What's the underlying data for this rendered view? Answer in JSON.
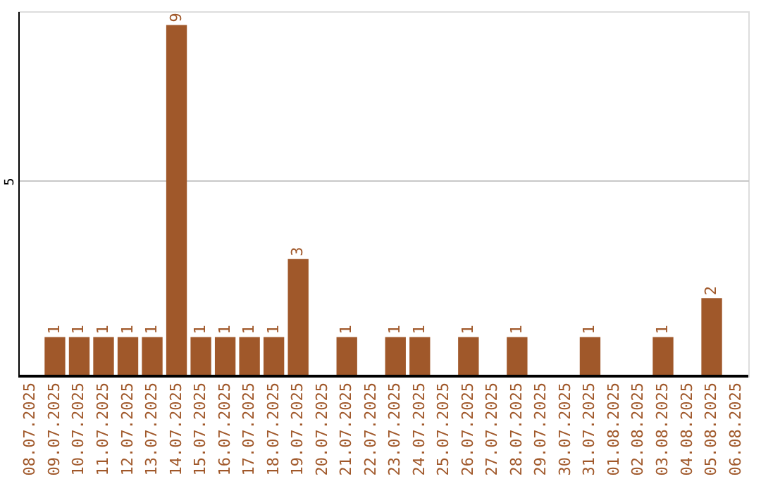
{
  "chart_data": {
    "type": "bar",
    "categories": [
      "08.07.2025",
      "09.07.2025",
      "10.07.2025",
      "11.07.2025",
      "12.07.2025",
      "13.07.2025",
      "14.07.2025",
      "15.07.2025",
      "16.07.2025",
      "17.07.2025",
      "18.07.2025",
      "19.07.2025",
      "20.07.2025",
      "21.07.2025",
      "22.07.2025",
      "23.07.2025",
      "24.07.2025",
      "25.07.2025",
      "26.07.2025",
      "27.07.2025",
      "28.07.2025",
      "29.07.2025",
      "30.07.2025",
      "31.07.2025",
      "01.08.2025",
      "02.08.2025",
      "03.08.2025",
      "04.08.2025",
      "05.08.2025",
      "06.08.2025"
    ],
    "values": [
      0,
      1,
      1,
      1,
      1,
      1,
      9,
      1,
      1,
      1,
      1,
      3,
      0,
      1,
      0,
      1,
      1,
      0,
      1,
      0,
      1,
      0,
      0,
      1,
      0,
      0,
      1,
      0,
      2,
      0
    ],
    "value_labels": [
      null,
      "1",
      "1",
      "1",
      "1",
      "1",
      "9",
      "1",
      "1",
      "1",
      "1",
      "3",
      null,
      "1",
      null,
      "1",
      "1",
      null,
      "1",
      null,
      "1",
      null,
      null,
      "1",
      null,
      null,
      "1",
      null,
      "2",
      null
    ],
    "color": "#a0582a",
    "ylim": [
      0,
      9.35
    ],
    "yticks": [
      5
    ],
    "grid": "y"
  }
}
